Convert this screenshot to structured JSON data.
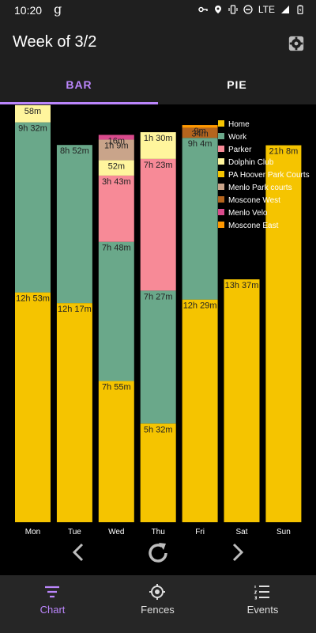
{
  "status_bar": {
    "time": "10:20",
    "app_glyph": "g",
    "network": "LTE",
    "icons": [
      "key-icon",
      "location-icon",
      "vibrate-icon",
      "dnd-icon",
      "signal-icon",
      "battery-icon"
    ]
  },
  "header": {
    "title": "Week of 3/2",
    "settings_icon": "gear-icon"
  },
  "tabs": [
    {
      "label": "BAR",
      "selected": true
    },
    {
      "label": "PIE",
      "selected": false
    }
  ],
  "chart_data": {
    "type": "bar",
    "stacked": true,
    "categories": [
      "Mon",
      "Tue",
      "Wed",
      "Thu",
      "Fri",
      "Sat",
      "Sun"
    ],
    "unit": "minutes",
    "ylim": [
      0,
      1400
    ],
    "legend_position": "top-right",
    "series": [
      {
        "name": "Home",
        "color": "#f5c400",
        "values": [
          773,
          737,
          475,
          332,
          749,
          817,
          1268
        ],
        "labels": [
          "12h 53m",
          "12h 17m",
          "7h 55m",
          "5h 32m",
          "12h 29m",
          "13h 37m",
          "21h 8m"
        ]
      },
      {
        "name": "Work",
        "color": "#6aa88a",
        "values": [
          572,
          532,
          468,
          447,
          544,
          0,
          0
        ],
        "labels": [
          "9h 32m",
          "8h 52m",
          "7h 48m",
          "7h 27m",
          "9h 4m",
          "",
          ""
        ]
      },
      {
        "name": "Parker",
        "color": "#f78a97",
        "values": [
          0,
          0,
          223,
          443,
          0,
          0,
          0
        ],
        "labels": [
          "",
          "",
          "3h 43m",
          "7h 23m",
          "",
          "",
          ""
        ]
      },
      {
        "name": "Dolphin Club",
        "color": "#fff59d",
        "values": [
          58,
          0,
          52,
          90,
          0,
          0,
          0
        ],
        "labels": [
          "58m",
          "",
          "52m",
          "1h 30m",
          "",
          "",
          ""
        ]
      },
      {
        "name": "PA Hoover Park Courts",
        "color": "#f5c400",
        "values": [
          0,
          0,
          0,
          0,
          0,
          0,
          0
        ],
        "labels": [
          "",
          "",
          "",
          "",
          "",
          "",
          ""
        ]
      },
      {
        "name": "Menlo Park courts",
        "color": "#c9a48a",
        "values": [
          0,
          0,
          69,
          0,
          0,
          0,
          0
        ],
        "labels": [
          "",
          "",
          "1h 9m",
          "",
          "",
          "",
          ""
        ]
      },
      {
        "name": "Moscone West",
        "color": "#b5651d",
        "values": [
          0,
          0,
          0,
          0,
          34,
          0,
          0
        ],
        "labels": [
          "",
          "",
          "",
          "",
          "34m",
          "",
          ""
        ]
      },
      {
        "name": "Menlo Velo",
        "color": "#d94a8c",
        "values": [
          0,
          0,
          16,
          0,
          0,
          0,
          0
        ],
        "labels": [
          "",
          "",
          "16m",
          "",
          "",
          "",
          ""
        ]
      },
      {
        "name": "Moscone East",
        "color": "#ff9800",
        "values": [
          0,
          0,
          0,
          0,
          9,
          0,
          0
        ],
        "labels": [
          "",
          "",
          "",
          "",
          "9m",
          "",
          ""
        ]
      }
    ]
  },
  "navigation": {
    "prev_icon": "chevron-left-icon",
    "refresh_icon": "refresh-icon",
    "next_icon": "chevron-right-icon"
  },
  "bottom_nav": [
    {
      "label": "Chart",
      "icon": "chart-icon",
      "selected": true
    },
    {
      "label": "Fences",
      "icon": "fences-icon",
      "selected": false
    },
    {
      "label": "Events",
      "icon": "events-icon",
      "selected": false
    }
  ]
}
